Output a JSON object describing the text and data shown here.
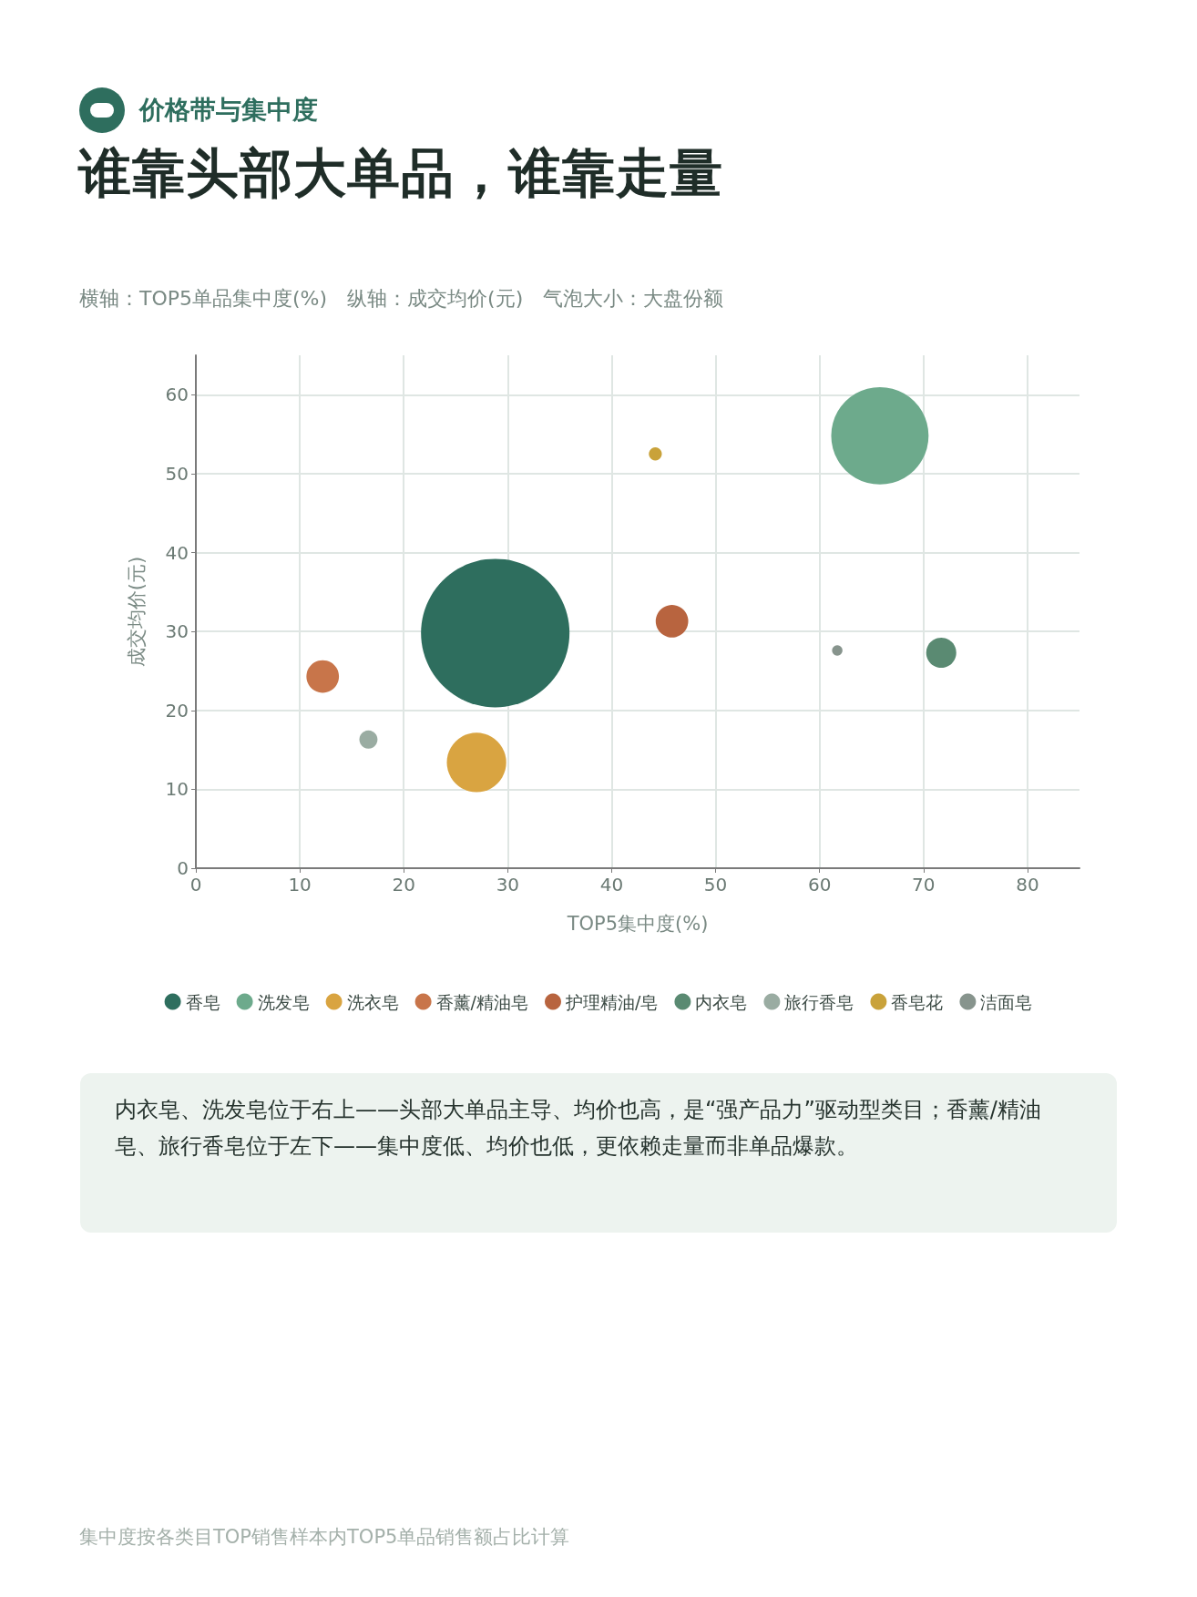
{
  "chart_data": {
    "type": "bubble",
    "subtitle": "价格带与集中度",
    "title": "谁靠头部大单品，谁靠走量",
    "xlabel": "TOP5集中度(%)",
    "ylabel": "成交均价(元)",
    "xlim": [
      0,
      85
    ],
    "xticks": [
      0,
      10,
      20,
      30,
      40,
      50,
      60,
      70,
      80
    ],
    "ylim": [
      0,
      65
    ],
    "yticks": [
      0,
      10,
      20,
      30,
      40,
      50,
      60
    ],
    "grid": true,
    "legend": "bottom",
    "marker": "circle",
    "series": [
      {
        "name": "香皂",
        "color": "#2e6e5e",
        "x": [
          28.8
        ],
        "values": [
          29.8
        ],
        "sizes": [
          1
        ]
      },
      {
        "name": "洗发皂",
        "color": "#6daa8c",
        "x": [
          65.8
        ],
        "values": [
          54.8
        ],
        "sizes": [
          0.43
        ]
      },
      {
        "name": "洗衣皂",
        "color": "#d9a441",
        "x": [
          27.0
        ],
        "values": [
          13.4
        ],
        "sizes": [
          0.16
        ]
      },
      {
        "name": "香薰/精油皂",
        "color": "#c8754a",
        "x": [
          12.2
        ],
        "values": [
          24.3
        ],
        "sizes": [
          0.048
        ]
      },
      {
        "name": "护理精油/皂",
        "color": "#b8643f",
        "x": [
          45.8
        ],
        "values": [
          31.3
        ],
        "sizes": [
          0.048
        ]
      },
      {
        "name": "内衣皂",
        "color": "#5a8a72",
        "x": [
          71.7
        ],
        "values": [
          27.3
        ],
        "sizes": [
          0.041
        ]
      },
      {
        "name": "旅行香皂",
        "color": "#9aaca2",
        "x": [
          16.6
        ],
        "values": [
          16.3
        ],
        "sizes": [
          0.015
        ]
      },
      {
        "name": "香皂花",
        "color": "#c9a23a",
        "x": [
          44.2
        ],
        "values": [
          52.5
        ],
        "sizes": [
          0.0077
        ]
      },
      {
        "name": "洁面皂",
        "color": "#87948d",
        "x": [
          61.7
        ],
        "values": [
          27.6
        ],
        "sizes": [
          0.0049
        ]
      }
    ],
    "annotations": [
      "横轴：TOP5单品集中度(%)　纵轴：成交均价(元)　气泡大小：大盘份额",
      "内衣皂、洗发皂位于右上——头部大单品主导、均价也高，是“强产品力”驱动型类目；香薰/精油皂、旅行香皂位于左下——集中度低、均价也低，更依赖走量而非单品爆款。",
      "集中度按各类目TOP销售样本内TOP5单品销售额占比计算"
    ]
  }
}
